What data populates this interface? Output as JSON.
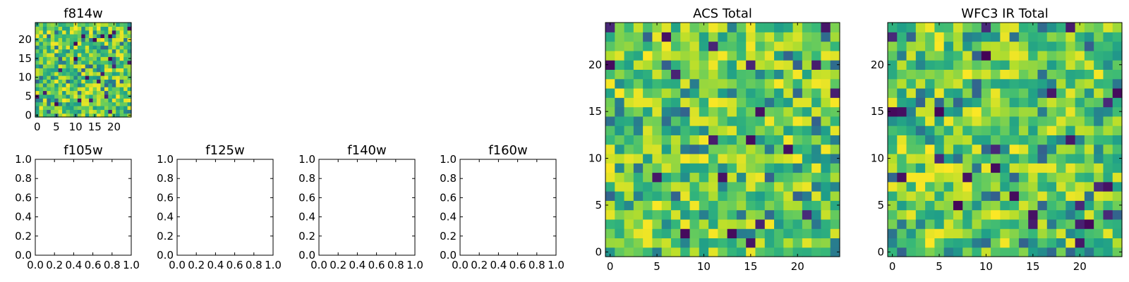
{
  "figure_title": "",
  "chart_data": [
    {
      "type": "heatmap",
      "title": "f814w",
      "grid_size": [
        25,
        25
      ],
      "colormap": "viridis",
      "xlim": [
        -0.5,
        24.5
      ],
      "ylim": [
        -0.5,
        24.5
      ],
      "xticks": [
        0,
        5,
        10,
        15,
        20
      ],
      "xtick_labels": [
        "0",
        "5",
        "10",
        "15",
        "20"
      ],
      "yticks": [
        0,
        5,
        10,
        15,
        20
      ],
      "ytick_labels": [
        "0",
        "5",
        "10",
        "15",
        "20"
      ],
      "seed": 814
    },
    {
      "type": "empty",
      "title": "f105w",
      "xlim": [
        0,
        1
      ],
      "ylim": [
        0,
        1
      ],
      "xticks": [
        0,
        0.2,
        0.4,
        0.6,
        0.8,
        1.0
      ],
      "xtick_labels": [
        "0.0",
        "0.2",
        "0.4",
        "0.6",
        "0.8",
        "1.0"
      ],
      "yticks": [
        0,
        0.2,
        0.4,
        0.6,
        0.8,
        1.0
      ],
      "ytick_labels": [
        "0.0",
        "0.2",
        "0.4",
        "0.6",
        "0.8",
        "1.0"
      ]
    },
    {
      "type": "empty",
      "title": "f125w",
      "xlim": [
        0,
        1
      ],
      "ylim": [
        0,
        1
      ],
      "xticks": [
        0,
        0.2,
        0.4,
        0.6,
        0.8,
        1.0
      ],
      "xtick_labels": [
        "0.0",
        "0.2",
        "0.4",
        "0.6",
        "0.8",
        "1.0"
      ],
      "yticks": [
        0,
        0.2,
        0.4,
        0.6,
        0.8,
        1.0
      ],
      "ytick_labels": [
        "0.0",
        "0.2",
        "0.4",
        "0.6",
        "0.8",
        "1.0"
      ]
    },
    {
      "type": "empty",
      "title": "f140w",
      "xlim": [
        0,
        1
      ],
      "ylim": [
        0,
        1
      ],
      "xticks": [
        0,
        0.2,
        0.4,
        0.6,
        0.8,
        1.0
      ],
      "xtick_labels": [
        "0.0",
        "0.2",
        "0.4",
        "0.6",
        "0.8",
        "1.0"
      ],
      "yticks": [
        0,
        0.2,
        0.4,
        0.6,
        0.8,
        1.0
      ],
      "ytick_labels": [
        "0.0",
        "0.2",
        "0.4",
        "0.6",
        "0.8",
        "1.0"
      ]
    },
    {
      "type": "empty",
      "title": "f160w",
      "xlim": [
        0,
        1
      ],
      "ylim": [
        0,
        1
      ],
      "xticks": [
        0,
        0.2,
        0.4,
        0.6,
        0.8,
        1.0
      ],
      "xtick_labels": [
        "0.0",
        "0.2",
        "0.4",
        "0.6",
        "0.8",
        "1.0"
      ],
      "yticks": [
        0,
        0.2,
        0.4,
        0.6,
        0.8,
        1.0
      ],
      "ytick_labels": [
        "0.0",
        "0.2",
        "0.4",
        "0.6",
        "0.8",
        "1.0"
      ]
    },
    {
      "type": "heatmap",
      "title": "ACS Total",
      "grid_size": [
        25,
        25
      ],
      "colormap": "viridis",
      "xlim": [
        -0.5,
        24.5
      ],
      "ylim": [
        -0.5,
        24.5
      ],
      "xticks": [
        0,
        5,
        10,
        15,
        20
      ],
      "xtick_labels": [
        "0",
        "5",
        "10",
        "15",
        "20"
      ],
      "yticks": [
        0,
        5,
        10,
        15,
        20
      ],
      "ytick_labels": [
        "0",
        "5",
        "10",
        "15",
        "20"
      ],
      "seed": 2101
    },
    {
      "type": "heatmap",
      "title": "WFC3 IR Total",
      "grid_size": [
        25,
        25
      ],
      "colormap": "viridis",
      "xlim": [
        -0.5,
        24.5
      ],
      "ylim": [
        -0.5,
        24.5
      ],
      "xticks": [
        0,
        5,
        10,
        15,
        20
      ],
      "xtick_labels": [
        "0",
        "5",
        "10",
        "15",
        "20"
      ],
      "yticks": [
        0,
        5,
        10,
        15,
        20
      ],
      "ytick_labels": [
        "0",
        "5",
        "10",
        "15",
        "20"
      ],
      "seed": 3307
    }
  ]
}
